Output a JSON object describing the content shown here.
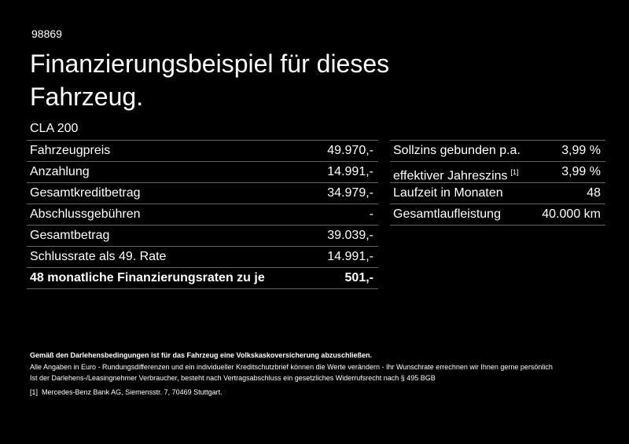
{
  "header": {
    "code": "98869",
    "title": "Finanzierungsbeispiel für dieses Fahrzeug.",
    "model": "CLA 200"
  },
  "left_table": {
    "rows": [
      [
        "Fahrzeugpreis",
        "49.970,-"
      ],
      [
        "Anzahlung",
        "14.991,-"
      ],
      [
        "Gesamtkreditbetrag",
        "34.979,-"
      ],
      [
        "Abschlussgebühren",
        "-"
      ],
      [
        "Gesamtbetrag",
        "39.039,-"
      ],
      [
        "Schlussrate als 49. Rate",
        "14.991,-"
      ],
      [
        "48 monatliche Finanzierungsraten zu je",
        "501,-"
      ]
    ]
  },
  "right_table": {
    "rows": [
      [
        "Sollzins gebunden p.a.",
        "3,99 %"
      ],
      [
        "effektiver Jahreszins",
        "3,99 %"
      ],
      [
        "Laufzeit in Monaten",
        "48"
      ],
      [
        "Gesamtlaufleistung",
        "40.000 km"
      ]
    ],
    "footnote_ref": "[1]"
  },
  "footer": {
    "notice": "Gemäß den Darlehensbedingungen ist für das Fahrzeug eine Volkskaskoversicherung abzuschließen.",
    "line1": "Alle Angaben in Euro - Rundungsdifferenzen und ein individueller Kreditschutzbrief können die Werte verändern - Ihr Wunschrate errechnen wir Ihnen gerne persönlich",
    "line2": "Ist der Darlehens-/Leasingnehmer Verbraucher, besteht nach Vertragsabschluss ein gesetzliches Widerrufsrecht nach § 495 BGB",
    "footnote_mark": "[1]",
    "footnote_text": "Mercedes-Benz Bank AG, Siemensstr. 7, 70469 Stuttgart."
  }
}
